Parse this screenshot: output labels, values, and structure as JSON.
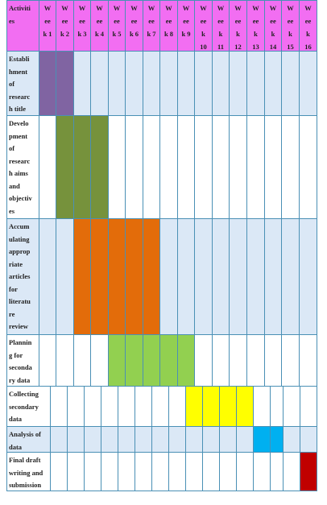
{
  "table": {
    "header_label": [
      "Activiti",
      "es"
    ],
    "weeks": [
      [
        "W",
        "ee",
        "k 1"
      ],
      [
        "W",
        "ee",
        "k 2"
      ],
      [
        "W",
        "ee",
        "k 3"
      ],
      [
        "W",
        "ee",
        "k 4"
      ],
      [
        "W",
        "ee",
        "k 5"
      ],
      [
        "W",
        "ee",
        "k 6"
      ],
      [
        "W",
        "ee",
        "k 7"
      ],
      [
        "W",
        "ee",
        "k 8"
      ],
      [
        "W",
        "ee",
        "k 9"
      ],
      [
        "W",
        "ee",
        "k",
        "10"
      ],
      [
        "W",
        "ee",
        "k",
        "11"
      ],
      [
        "W",
        "ee",
        "k",
        "12"
      ],
      [
        "W",
        "ee",
        "k",
        "13"
      ],
      [
        "W",
        "ee",
        "k",
        "14"
      ],
      [
        "W",
        "ee",
        "k",
        "15"
      ],
      [
        "W",
        "ee",
        "k",
        "16"
      ]
    ],
    "rows": [
      {
        "label": [
          "Establi",
          "hment",
          "of",
          "researc",
          "h title"
        ],
        "start_week": 1,
        "end_week": 2,
        "color": "#8064a2",
        "row_fill": "#dbe8f6"
      },
      {
        "label": [
          "Develo",
          "pment",
          "of",
          "researc",
          "h aims",
          "and",
          "objectiv",
          "es"
        ],
        "start_week": 2,
        "end_week": 4,
        "color": "#76923c",
        "row_fill": "#ffffff"
      },
      {
        "label": [
          "Accum",
          "ulating",
          "approp",
          "riate",
          "articles",
          "for",
          "literatu",
          "re",
          "review"
        ],
        "start_week": 3,
        "end_week": 7,
        "color": "#e36c0a",
        "row_fill": "#dbe8f6"
      },
      {
        "label": [
          "Plannin",
          "g for",
          "seconda",
          "ry data"
        ],
        "start_week": 5,
        "end_week": 9,
        "color": "#92d050",
        "row_fill": "#ffffff"
      },
      {
        "label": [
          "Collecting",
          "secondary",
          "data"
        ],
        "start_week": 9,
        "end_week": 12,
        "color": "#ffff00",
        "row_fill": "#ffffff"
      },
      {
        "label": [
          "Analysis of",
          "data"
        ],
        "start_week": 13,
        "end_week": 14,
        "color": "#00b0f0",
        "row_fill": "#dbe8f6"
      },
      {
        "label": [
          "Final draft",
          "writing and",
          "submission"
        ],
        "start_week": 16,
        "end_week": 16,
        "color": "#c00000",
        "row_fill": "#ffffff"
      }
    ],
    "header_fill": "#f26ef2",
    "border_color": "#4a90b5"
  }
}
